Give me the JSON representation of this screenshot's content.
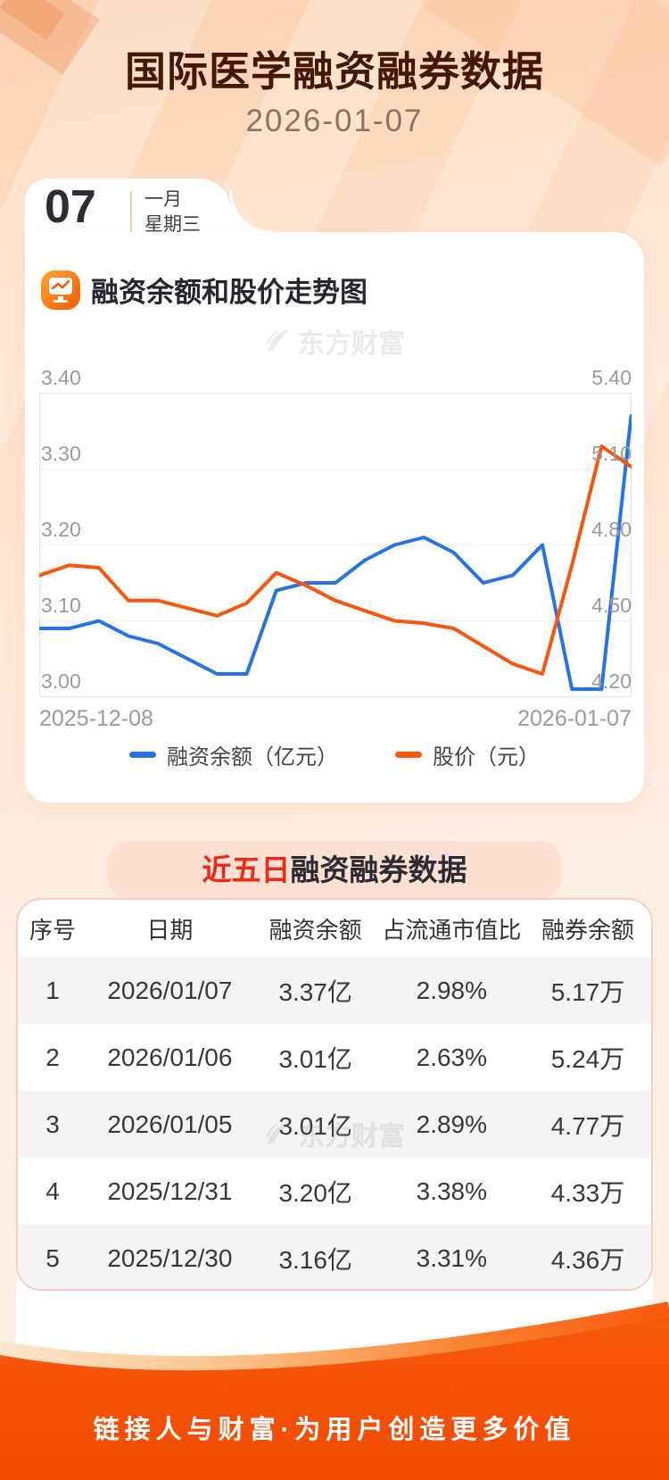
{
  "page": {
    "title": "国际医学融资融券数据",
    "date": "2026-01-07",
    "watermark": "东方财富",
    "footer_slogan": "链接人与财富·为用户创造更多价值"
  },
  "date_card": {
    "day": "07",
    "month": "一月",
    "weekday": "星期三"
  },
  "chart_section": {
    "title": "融资余额和股价走势图",
    "icon": "trend-board-icon"
  },
  "chart_data": {
    "type": "line",
    "title": "融资余额和股价走势图",
    "x": [
      "2025-12-08",
      "2025-12-09",
      "2025-12-10",
      "2025-12-11",
      "2025-12-12",
      "2025-12-15",
      "2025-12-16",
      "2025-12-17",
      "2025-12-18",
      "2025-12-19",
      "2025-12-22",
      "2025-12-23",
      "2025-12-24",
      "2025-12-25",
      "2025-12-26",
      "2025-12-29",
      "2025-12-30",
      "2025-12-31",
      "2026-01-05",
      "2026-01-06",
      "2026-01-07"
    ],
    "x_labels": [
      "2025-12-08",
      "2026-01-07"
    ],
    "series": [
      {
        "name": "融资余额（亿元）",
        "color": "#2574e6",
        "axis": "left",
        "values": [
          3.09,
          3.09,
          3.1,
          3.08,
          3.07,
          3.05,
          3.03,
          3.03,
          3.14,
          3.15,
          3.15,
          3.18,
          3.2,
          3.21,
          3.19,
          3.15,
          3.16,
          3.2,
          3.01,
          3.01,
          3.37
        ]
      },
      {
        "name": "股价（元）",
        "color": "#f8560c",
        "axis": "right",
        "values": [
          4.68,
          4.72,
          4.71,
          4.58,
          4.58,
          4.55,
          4.52,
          4.57,
          4.69,
          4.64,
          4.58,
          4.54,
          4.5,
          4.49,
          4.47,
          4.4,
          4.33,
          4.29,
          4.72,
          5.19,
          5.11
        ]
      }
    ],
    "left_axis": {
      "min": 3.0,
      "max": 3.4,
      "ticks": [
        "3.40",
        "3.30",
        "3.20",
        "3.10",
        "3.00"
      ]
    },
    "right_axis": {
      "min": 4.2,
      "max": 5.4,
      "ticks": [
        "5.40",
        "5.10",
        "4.80",
        "4.50",
        "4.20"
      ]
    },
    "grid": true,
    "legend_position": "bottom"
  },
  "table_section": {
    "title_highlight": "近五日",
    "title_rest": "融资融券数据",
    "headers": [
      "序号",
      "日期",
      "融资余额",
      "占流通市值比",
      "融券余额"
    ],
    "rows": [
      [
        "1",
        "2026/01/07",
        "3.37亿",
        "2.98%",
        "5.17万"
      ],
      [
        "2",
        "2026/01/06",
        "3.01亿",
        "2.63%",
        "5.24万"
      ],
      [
        "3",
        "2026/01/05",
        "3.01亿",
        "2.89%",
        "4.77万"
      ],
      [
        "4",
        "2025/12/31",
        "3.20亿",
        "3.38%",
        "4.33万"
      ],
      [
        "5",
        "2025/12/30",
        "3.16亿",
        "3.31%",
        "4.36万"
      ]
    ]
  },
  "colors": {
    "line_blue": "#2574e6",
    "line_orange": "#f8560c",
    "title_brown": "#441708",
    "red_accent": "#f0281c",
    "footer_orange_top": "#f8590e",
    "footer_orange_bottom": "#f14a03",
    "pink_box": "#fce0d2",
    "panel_border": "#f7cdc2",
    "zebra_gray": "#f4f4f6",
    "axis_gray": "#9a9a9a"
  }
}
